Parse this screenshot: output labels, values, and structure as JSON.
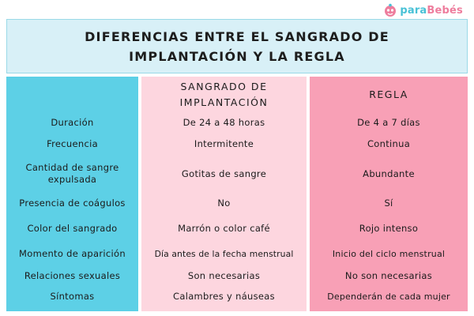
{
  "brand": {
    "prefix": "para",
    "suffix": "Bebés",
    "icon": "baby-face-icon"
  },
  "title": "DIFERENCIAS ENTRE EL SANGRADO DE IMPLANTACIÓN Y LA REGLA",
  "columns": {
    "implantation": "SANGRADO DE IMPLANTACIÓN",
    "period": "REGLA"
  },
  "rows": [
    {
      "label": "Duración",
      "implantation": "De 24 a 48 horas",
      "period": "De 4 a 7 días"
    },
    {
      "label": "Frecuencia",
      "implantation": "Intermitente",
      "period": "Continua"
    },
    {
      "label": "Cantidad de sangre expulsada",
      "implantation": "Gotitas de sangre",
      "period": "Abundante"
    },
    {
      "label": "Presencia de coágulos",
      "implantation": "No",
      "period": "Sí"
    },
    {
      "label": "Color del sangrado",
      "implantation": "Marrón o color café",
      "period": "Rojo intenso"
    },
    {
      "label": "Momento de aparición",
      "implantation": "Día antes de la fecha menstrual",
      "period": "Inicio del ciclo menstrual"
    },
    {
      "label": "Relaciones sexuales",
      "implantation": "Son necesarias",
      "period": "No son necesarias"
    },
    {
      "label": "Síntomas",
      "implantation": "Calambres y náuseas",
      "period": "Dependerán de cada mujer"
    }
  ],
  "colors": {
    "label_column": "#5dd0e6",
    "implantation_column": "#fdd6df",
    "period_column": "#f8a0b6",
    "title_background": "#d8f0f7",
    "brand_blue": "#47c1d6",
    "brand_pink": "#ee7d9d"
  }
}
